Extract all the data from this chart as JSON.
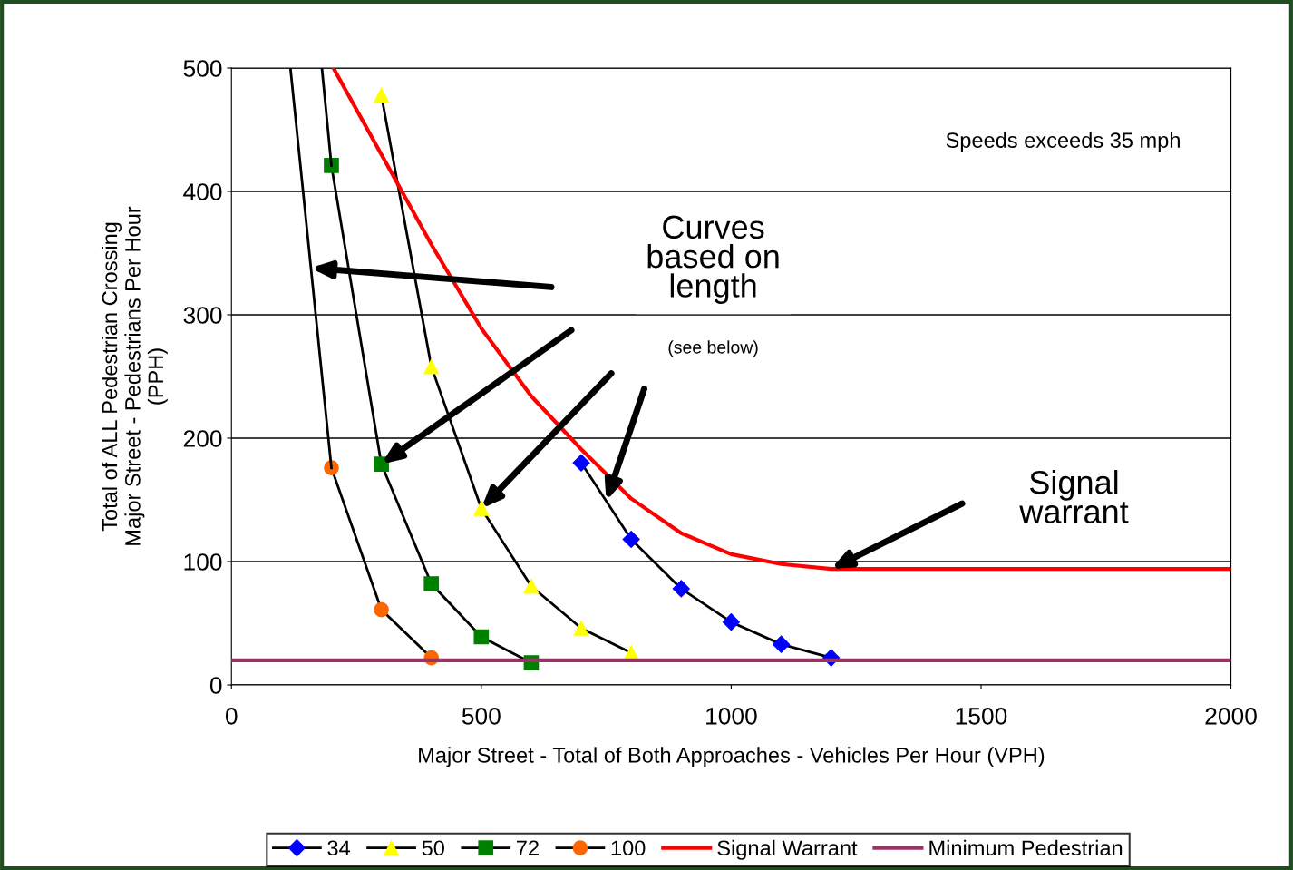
{
  "chart_data": {
    "type": "line",
    "xlabel": "Major Street - Total of Both Approaches - Vehicles Per Hour (VPH)",
    "ylabel": "Total of ALL Pedestrian Crossing\nMajor Street - Pedestrians Per Hour\n(PPH)",
    "xlim": [
      0,
      2000
    ],
    "ylim": [
      0,
      500
    ],
    "xticks": [
      0,
      500,
      1000,
      1500,
      2000
    ],
    "yticks": [
      0,
      100,
      200,
      300,
      400,
      500
    ],
    "grid": "y",
    "legend": "bottom",
    "line_style": "solid",
    "series": [
      {
        "name": "34",
        "color": "#0000ff",
        "marker": "diamond",
        "x": [
          700,
          800,
          900,
          1000,
          1100,
          1200
        ],
        "values": [
          180,
          118,
          78,
          51,
          33,
          22
        ]
      },
      {
        "name": "50",
        "color": "#ffff00",
        "marker": "triangle",
        "x": [
          300,
          400,
          500,
          600,
          700,
          800
        ],
        "values": [
          478,
          258,
          143,
          80,
          46,
          26
        ]
      },
      {
        "name": "72",
        "color": "#008000",
        "marker": "square",
        "x": [
          200,
          300,
          400,
          500,
          600
        ],
        "values": [
          421,
          179,
          82,
          39,
          18
        ]
      },
      {
        "name": "100",
        "color": "#ff6600",
        "marker": "circle",
        "x": [
          200,
          300,
          400
        ],
        "values": [
          176,
          61,
          22
        ]
      },
      {
        "color": "#000000",
        "marker": "none",
        "x": [
          181,
          200
        ],
        "values": [
          500,
          421
        ]
      },
      {
        "color": "#000000",
        "marker": "none",
        "x": [
          118,
          200
        ],
        "values": [
          500,
          176
        ]
      },
      {
        "name": "Signal Warrant",
        "color": "#ff0000",
        "marker": "none",
        "x": [
          204,
          300,
          400,
          500,
          600,
          700,
          800,
          900,
          1000,
          1100,
          1200,
          2000
        ],
        "values": [
          500,
          430,
          357,
          289,
          234,
          191,
          151,
          123,
          106,
          98,
          94,
          94
        ]
      },
      {
        "name": "Minimum Pedestrian",
        "color": "#993366",
        "marker": "none",
        "x": [
          0,
          2000
        ],
        "values": [
          20,
          20
        ]
      }
    ],
    "annotations": [
      "Speeds exceeds 35 mph",
      "Curves\nbased on\nlength",
      "(see below)",
      "Signal\nwarrant"
    ]
  }
}
